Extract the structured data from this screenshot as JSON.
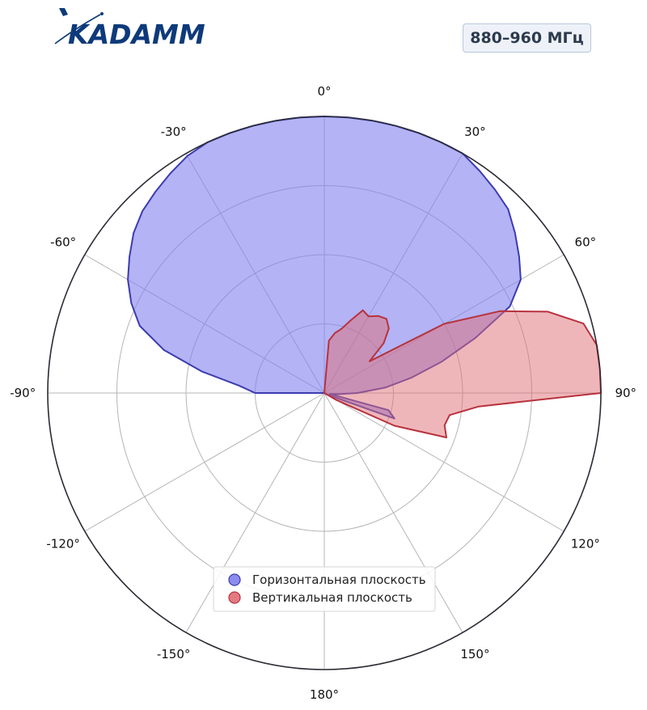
{
  "header": {
    "logo_text": "KADAMM",
    "band_label": "880–960 МГц"
  },
  "colors": {
    "horizontal_fill": "#8080ee",
    "horizontal_stroke": "#3c3cb0",
    "vertical_fill": "#e06d75",
    "vertical_stroke": "#b8323d",
    "logo_blue": "#0d3a7a"
  },
  "chart_data": {
    "type": "polar-area",
    "title": "",
    "angle_unit": "deg",
    "angle_zero": "top",
    "direction": "clockwise",
    "rlim": [
      0,
      1
    ],
    "rgrid": [
      0.25,
      0.5,
      0.75,
      1.0
    ],
    "theta_ticks": [
      0,
      30,
      60,
      90,
      120,
      150,
      180,
      -150,
      -120,
      -90,
      -60,
      -30
    ],
    "theta_tick_labels": [
      "0°",
      "30°",
      "60°",
      "90°",
      "120°",
      "150°",
      "180°",
      "-150°",
      "-120°",
      "-90°",
      "-60°",
      "-30°"
    ],
    "grid": true,
    "legend_position": "bottom-center",
    "series": [
      {
        "name": "Горизонтальная плоскость",
        "color": "#8080ee",
        "theta": [
          -90,
          -85,
          -80,
          -75,
          -70,
          -65,
          -60,
          -55,
          -50,
          -45,
          -40,
          -35,
          -30,
          -25,
          -20,
          -15,
          -10,
          -5,
          0,
          5,
          10,
          15,
          20,
          25,
          30,
          35,
          40,
          45,
          50,
          55,
          60,
          65,
          70,
          75,
          80,
          85,
          90,
          95,
          100,
          105,
          110,
          115,
          120,
          125,
          130,
          180
        ],
        "r": [
          0.25,
          0.31,
          0.45,
          0.6,
          0.71,
          0.77,
          0.82,
          0.86,
          0.9,
          0.93,
          0.95,
          0.97,
          0.99,
          1.0,
          1.0,
          1.0,
          1.0,
          1.0,
          1.0,
          1.0,
          1.0,
          1.0,
          1.0,
          1.0,
          1.0,
          0.98,
          0.96,
          0.94,
          0.9,
          0.86,
          0.82,
          0.74,
          0.58,
          0.44,
          0.32,
          0.22,
          0.12,
          0.05,
          0.02,
          0.24,
          0.27,
          0.02,
          0.0,
          0.0,
          0.0,
          0.0
        ]
      },
      {
        "name": "Вертикальная плоскость",
        "color": "#e06d75",
        "theta": [
          0,
          5,
          10,
          15,
          20,
          25,
          30,
          35,
          40,
          45,
          50,
          55,
          60,
          65,
          70,
          75,
          80,
          85,
          90,
          95,
          100,
          105,
          110,
          115,
          120,
          125,
          130,
          180,
          360
        ],
        "r": [
          0.0,
          0.19,
          0.22,
          0.24,
          0.28,
          0.33,
          0.32,
          0.34,
          0.35,
          0.33,
          0.28,
          0.2,
          0.5,
          0.7,
          0.86,
          0.97,
          1.0,
          1.0,
          1.0,
          0.56,
          0.46,
          0.45,
          0.47,
          0.28,
          0.05,
          0.0,
          0.0,
          0.0,
          0.0
        ]
      }
    ]
  }
}
